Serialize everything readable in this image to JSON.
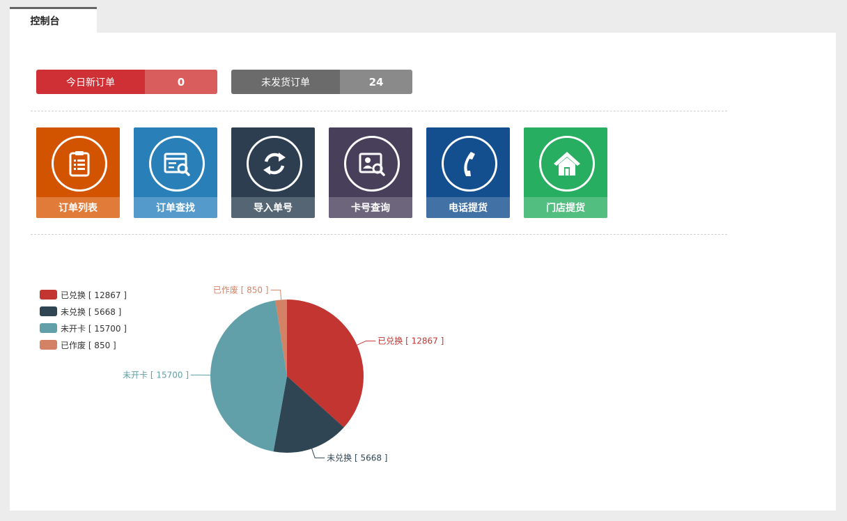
{
  "tabs": [
    {
      "label": "控制台"
    }
  ],
  "stats": [
    {
      "label": "今日新订单",
      "value": "0"
    },
    {
      "label": "未发货订单",
      "value": "24"
    }
  ],
  "tiles": [
    {
      "label": "订单列表",
      "icon": "clipboard-list-icon",
      "color_top": "#d35400",
      "color_bottom": "#e07b39"
    },
    {
      "label": "订单查找",
      "icon": "document-search-icon",
      "color_top": "#2980b9",
      "color_bottom": "#549bcb"
    },
    {
      "label": "导入单号",
      "icon": "sync-arrows-icon",
      "color_top": "#2c3e50",
      "color_bottom": "#566573"
    },
    {
      "label": "卡号查询",
      "icon": "id-card-search-icon",
      "color_top": "#483f5a",
      "color_bottom": "#6c657b"
    },
    {
      "label": "电话提货",
      "icon": "phone-icon",
      "color_top": "#134f8e",
      "color_bottom": "#4272a5"
    },
    {
      "label": "门店提货",
      "icon": "home-icon",
      "color_top": "#27ae60",
      "color_bottom": "#52be80"
    }
  ],
  "chart_data": {
    "type": "pie",
    "series": [
      {
        "name": "已兑换",
        "value": 12867,
        "label": "已兑换 [ 12867 ]",
        "color": "#c23531"
      },
      {
        "name": "未兑换",
        "value": 5668,
        "label": "未兑换 [ 5668 ]",
        "color": "#2f4554"
      },
      {
        "name": "未开卡",
        "value": 15700,
        "label": "未开卡 [ 15700 ]",
        "color": "#61a0a8"
      },
      {
        "name": "已作废",
        "value": 850,
        "label": "已作废 [ 850 ]",
        "color": "#d48265"
      }
    ],
    "legend_position": "left"
  }
}
